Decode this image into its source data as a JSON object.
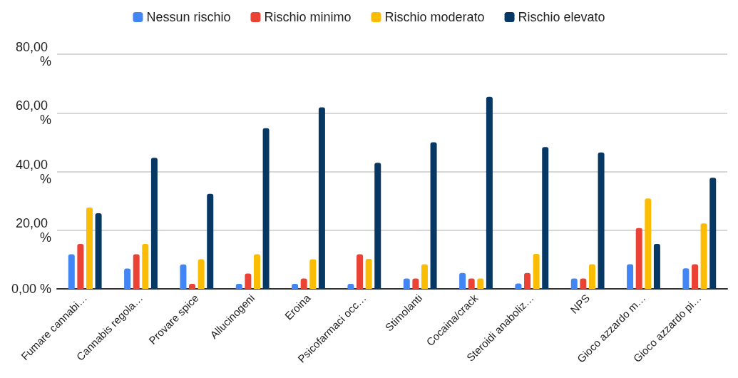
{
  "chart_data": {
    "type": "bar",
    "categories": [
      "Fumare cannabi…",
      "Cannabis regola…",
      "Provare spice",
      "Allucinogeni",
      "Eroina",
      "Psicofarmaci occ…",
      "Stimolanti",
      "Cocaina/crack",
      "Steroidi anaboliz…",
      "NPS",
      "Gioco azzardo m…",
      "Gioco azzardo pi…"
    ],
    "series": [
      {
        "name": "Nessun rischio",
        "color": "#4285f4",
        "values": [
          11.8,
          6.9,
          8.3,
          1.7,
          1.7,
          1.7,
          3.5,
          5.4,
          1.8,
          3.5,
          8.4,
          7.0
        ]
      },
      {
        "name": "Rischio minimo",
        "color": "#ea4335",
        "values": [
          15.3,
          11.8,
          1.7,
          5.2,
          3.5,
          11.8,
          3.5,
          3.5,
          5.4,
          3.5,
          20.7,
          8.4
        ]
      },
      {
        "name": "Rischio moderato",
        "color": "#fbbc04",
        "values": [
          27.7,
          15.3,
          10.1,
          11.8,
          10.1,
          10.2,
          8.4,
          3.5,
          11.9,
          8.4,
          30.8,
          22.3
        ]
      },
      {
        "name": "Rischio elevato",
        "color": "#073763",
        "values": [
          25.8,
          44.7,
          32.4,
          54.8,
          61.9,
          43.0,
          50.0,
          65.5,
          48.3,
          46.5,
          15.3,
          37.9
        ]
      }
    ],
    "ylim": [
      0,
      80
    ],
    "yticks": [
      {
        "value": 0,
        "label": "0,00 %"
      },
      {
        "value": 20,
        "label": "20,00 %"
      },
      {
        "value": 40,
        "label": "40,00 %"
      },
      {
        "value": 60,
        "label": "60,00 %"
      },
      {
        "value": 80,
        "label": "80,00 %"
      }
    ],
    "grid": "y",
    "legend": "top"
  }
}
